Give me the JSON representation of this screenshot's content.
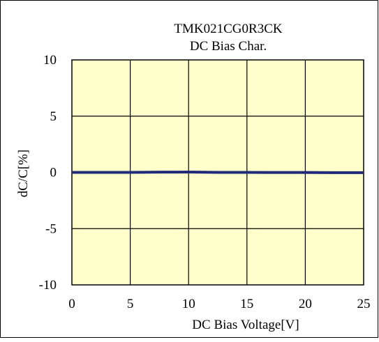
{
  "chart_data": {
    "type": "line",
    "title": "TMK021CG0R3CK",
    "subtitle": "DC Bias Char.",
    "xlabel": "DC Bias Voltage[V]",
    "ylabel": "dC/C[%]",
    "xlim": [
      0,
      25
    ],
    "ylim": [
      -10,
      10
    ],
    "xticks": [
      0,
      5,
      10,
      15,
      20,
      25
    ],
    "yticks": [
      10,
      5,
      0,
      -5,
      -10
    ],
    "xtick_labels": [
      "0",
      "5",
      "10",
      "15",
      "20",
      "25"
    ],
    "ytick_labels": [
      "10",
      "5",
      "0",
      "-5",
      "-10"
    ],
    "grid": true,
    "legend": "none",
    "series": [
      {
        "x": [
          0,
          2.5,
          5,
          7.5,
          10,
          12.5,
          15,
          17.5,
          20,
          22.5,
          25
        ],
        "y": [
          0,
          0,
          0,
          0.02,
          0.03,
          0,
          0,
          -0.01,
          -0.01,
          -0.02,
          -0.02
        ],
        "color": "#1f2a78"
      }
    ],
    "colors": {
      "plot_background": "#ffffcc",
      "grid": "#000000",
      "frame": "#000000",
      "series": "#1f2a78"
    }
  }
}
